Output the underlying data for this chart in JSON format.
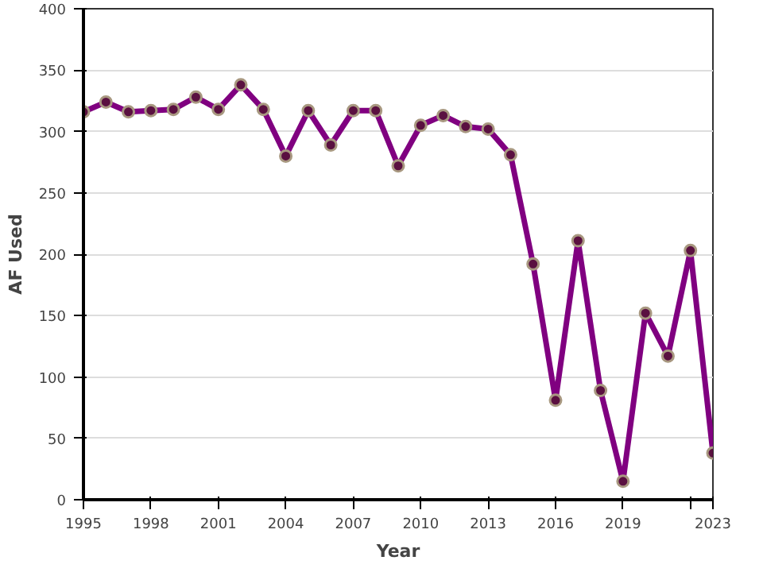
{
  "chart_data": {
    "type": "line",
    "xlabel": "Year",
    "ylabel": "AF Used",
    "x": [
      1995,
      1996,
      1997,
      1998,
      1999,
      2000,
      2001,
      2002,
      2003,
      2004,
      2005,
      2006,
      2007,
      2008,
      2009,
      2010,
      2011,
      2012,
      2013,
      2014,
      2015,
      2016,
      2017,
      2018,
      2019,
      2020,
      2021,
      2022,
      2023
    ],
    "series": [
      {
        "color": "#800080",
        "values": [
          316,
          324,
          316,
          317,
          318,
          328,
          318,
          338,
          318,
          280,
          317,
          289,
          317,
          317,
          272,
          305,
          313,
          304,
          302,
          281,
          192,
          81,
          211,
          89,
          15,
          152,
          117,
          203,
          38
        ]
      }
    ],
    "xlim": [
      1995,
      2023
    ],
    "xticks": [
      1995,
      1998,
      2001,
      2004,
      2007,
      2010,
      2013,
      2016,
      2019,
      {
        "value": 2022,
        "label": null
      },
      2023
    ],
    "ylim": [
      0,
      400
    ],
    "yticks": [
      0,
      50,
      100,
      150,
      200,
      250,
      300,
      350,
      400
    ],
    "grid": "y",
    "marker": "circle",
    "line_style": "solid"
  }
}
